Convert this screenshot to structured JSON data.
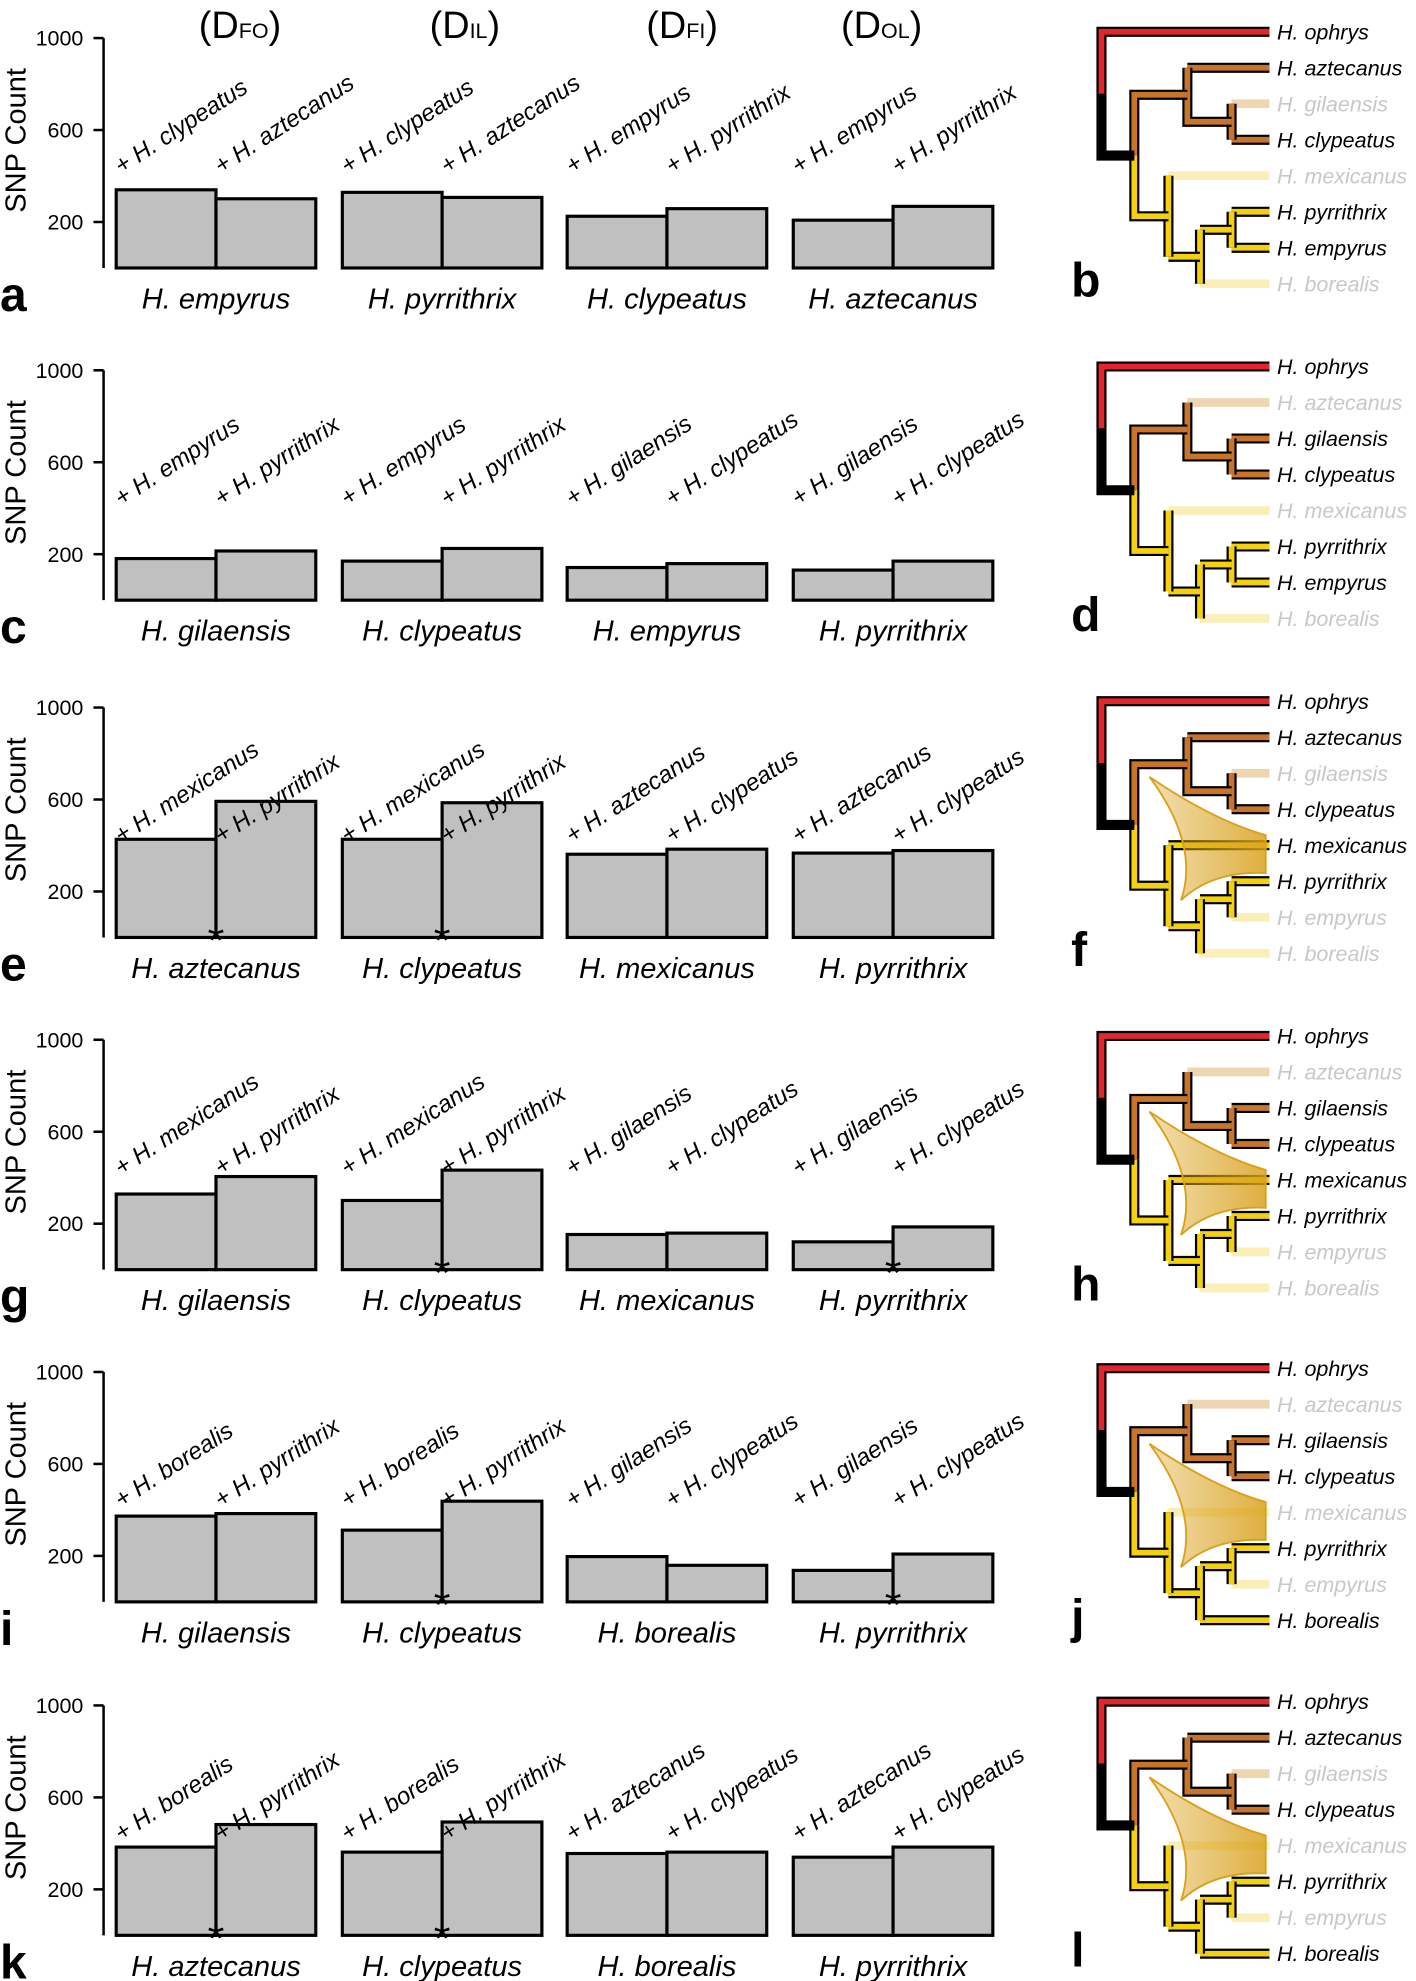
{
  "column_headers": [
    {
      "open": "(",
      "symbol": "D",
      "subscript": "FO",
      "close": ")"
    },
    {
      "open": "(",
      "symbol": "D",
      "subscript": "IL",
      "close": ")"
    },
    {
      "open": "(",
      "symbol": "D",
      "subscript": "FI",
      "close": ")"
    },
    {
      "open": "(",
      "symbol": "D",
      "subscript": "OL",
      "close": ")"
    }
  ],
  "chart_data": [
    {
      "type": "bar",
      "panel": "a",
      "ylabel": "SNP Count",
      "ylim": [
        0,
        1000
      ],
      "yticks": [
        200,
        600,
        1000
      ],
      "color": "#c0c0c0",
      "significance_marker": "*",
      "categories": [
        "H. empyrus",
        "H. pyrrithrix",
        "H. clypeatus",
        "H. aztecanus"
      ],
      "bar_labels": [
        [
          "+ H. clypeatus",
          "+ H. aztecanus"
        ],
        [
          "+ H. clypeatus",
          "+ H. aztecanus"
        ],
        [
          "+ H. empyrus",
          "+ H. pyrrithrix"
        ],
        [
          "+ H. empyrus",
          "+ H. pyrrithrix"
        ]
      ],
      "values": [
        [
          340,
          301
        ],
        [
          329,
          307
        ],
        [
          225,
          258
        ],
        [
          208,
          268
        ]
      ],
      "significant": [
        false,
        false,
        false,
        false
      ]
    },
    {
      "type": "bar",
      "panel": "c",
      "ylabel": "SNP Count",
      "ylim": [
        0,
        1000
      ],
      "yticks": [
        200,
        600,
        1000
      ],
      "color": "#c0c0c0",
      "significance_marker": "*",
      "categories": [
        "H. gilaensis",
        "H. clypeatus",
        "H. empyrus",
        "H. pyrrithrix"
      ],
      "bar_labels": [
        [
          "+ H. empyrus",
          "+ H. pyrrithrix"
        ],
        [
          "+ H. empyrus",
          "+ H. pyrrithrix"
        ],
        [
          "+ H. gilaensis",
          "+ H. clypeatus"
        ],
        [
          "+ H. gilaensis",
          "+ H. clypeatus"
        ]
      ],
      "values": [
        [
          181,
          214
        ],
        [
          170,
          225
        ],
        [
          142,
          159
        ],
        [
          131,
          170
        ]
      ],
      "significant": [
        false,
        false,
        false,
        false
      ]
    },
    {
      "type": "bar",
      "panel": "e",
      "ylabel": "SNP Count",
      "ylim": [
        0,
        1000
      ],
      "yticks": [
        200,
        600,
        1000
      ],
      "color": "#c0c0c0",
      "significance_marker": "*",
      "categories": [
        "H. aztecanus",
        "H. clypeatus",
        "H. mexicanus",
        "H. pyrrithrix"
      ],
      "bar_labels": [
        [
          "+ H. mexicanus",
          "+ H. pyrrithrix"
        ],
        [
          "+ H. mexicanus",
          "+ H. pyrrithrix"
        ],
        [
          "+ H. aztecanus",
          "+ H. clypeatus"
        ],
        [
          "+ H. aztecanus",
          "+ H. clypeatus"
        ]
      ],
      "values": [
        [
          427,
          592
        ],
        [
          427,
          586
        ],
        [
          362,
          384
        ],
        [
          367,
          378
        ]
      ],
      "significant": [
        true,
        true,
        false,
        false
      ]
    },
    {
      "type": "bar",
      "panel": "g",
      "ylabel": "SNP Count",
      "ylim": [
        0,
        1000
      ],
      "yticks": [
        200,
        600,
        1000
      ],
      "color": "#c0c0c0",
      "significance_marker": "*",
      "categories": [
        "H. gilaensis",
        "H. clypeatus",
        "H. mexicanus",
        "H. pyrrithrix"
      ],
      "bar_labels": [
        [
          "+ H. mexicanus",
          "+ H. pyrrithrix"
        ],
        [
          "+ H. mexicanus",
          "+ H. pyrrithrix"
        ],
        [
          "+ H. gilaensis",
          "+ H. clypeatus"
        ],
        [
          "+ H. gilaensis",
          "+ H. clypeatus"
        ]
      ],
      "values": [
        [
          329,
          405
        ],
        [
          301,
          433
        ],
        [
          153,
          159
        ],
        [
          121,
          186
        ]
      ],
      "significant": [
        false,
        true,
        false,
        true
      ]
    },
    {
      "type": "bar",
      "panel": "i",
      "ylabel": "SNP Count",
      "ylim": [
        0,
        1000
      ],
      "yticks": [
        200,
        600,
        1000
      ],
      "color": "#c0c0c0",
      "significance_marker": "*",
      "categories": [
        "H. gilaensis",
        "H. clypeatus",
        "H. borealis",
        "H. pyrrithrix"
      ],
      "bar_labels": [
        [
          "+ H. borealis",
          "+ H. pyrrithrix"
        ],
        [
          "+ H. borealis",
          "+ H. pyrrithrix"
        ],
        [
          "+ H. gilaensis",
          "+ H. clypeatus"
        ],
        [
          "+ H. gilaensis",
          "+ H. clypeatus"
        ]
      ],
      "values": [
        [
          373,
          384
        ],
        [
          312,
          438
        ],
        [
          197,
          159
        ],
        [
          137,
          208
        ]
      ],
      "significant": [
        false,
        true,
        false,
        true
      ]
    },
    {
      "type": "bar",
      "panel": "k",
      "ylabel": "SNP Count",
      "ylim": [
        0,
        1000
      ],
      "yticks": [
        200,
        600,
        1000
      ],
      "color": "#c0c0c0",
      "significance_marker": "*",
      "categories": [
        "H. aztecanus",
        "H. clypeatus",
        "H. borealis",
        "H. pyrrithrix"
      ],
      "bar_labels": [
        [
          "+ H. borealis",
          "+ H. pyrrithrix"
        ],
        [
          "+ H. borealis",
          "+ H. pyrrithrix"
        ],
        [
          "+ H. aztecanus",
          "+ H. clypeatus"
        ],
        [
          "+ H. aztecanus",
          "+ H. clypeatus"
        ]
      ],
      "values": [
        [
          384,
          482
        ],
        [
          362,
          493
        ],
        [
          356,
          362
        ],
        [
          340,
          384
        ]
      ],
      "significant": [
        true,
        true,
        false,
        false
      ]
    }
  ],
  "trees": [
    {
      "panel": "b",
      "gene_flow": false,
      "tips": [
        {
          "label": "H. ophrys",
          "faded": false
        },
        {
          "label": "H. aztecanus",
          "faded": false
        },
        {
          "label": "H. gilaensis",
          "faded": true
        },
        {
          "label": "H. clypeatus",
          "faded": false
        },
        {
          "label": "H. mexicanus",
          "faded": true
        },
        {
          "label": "H. pyrrithrix",
          "faded": false
        },
        {
          "label": "H. empyrus",
          "faded": false
        },
        {
          "label": "H. borealis",
          "faded": true
        }
      ]
    },
    {
      "panel": "d",
      "gene_flow": false,
      "tips": [
        {
          "label": "H. ophrys",
          "faded": false
        },
        {
          "label": "H. aztecanus",
          "faded": true
        },
        {
          "label": "H. gilaensis",
          "faded": false
        },
        {
          "label": "H. clypeatus",
          "faded": false
        },
        {
          "label": "H. mexicanus",
          "faded": true
        },
        {
          "label": "H. pyrrithrix",
          "faded": false
        },
        {
          "label": "H. empyrus",
          "faded": false
        },
        {
          "label": "H. borealis",
          "faded": true
        }
      ]
    },
    {
      "panel": "f",
      "gene_flow": true,
      "tips": [
        {
          "label": "H. ophrys",
          "faded": false
        },
        {
          "label": "H. aztecanus",
          "faded": false
        },
        {
          "label": "H. gilaensis",
          "faded": true
        },
        {
          "label": "H. clypeatus",
          "faded": false
        },
        {
          "label": "H. mexicanus",
          "faded": false
        },
        {
          "label": "H. pyrrithrix",
          "faded": false
        },
        {
          "label": "H. empyrus",
          "faded": true
        },
        {
          "label": "H. borealis",
          "faded": true
        }
      ]
    },
    {
      "panel": "h",
      "gene_flow": true,
      "tips": [
        {
          "label": "H. ophrys",
          "faded": false
        },
        {
          "label": "H. aztecanus",
          "faded": true
        },
        {
          "label": "H. gilaensis",
          "faded": false
        },
        {
          "label": "H. clypeatus",
          "faded": false
        },
        {
          "label": "H. mexicanus",
          "faded": false
        },
        {
          "label": "H. pyrrithrix",
          "faded": false
        },
        {
          "label": "H. empyrus",
          "faded": true
        },
        {
          "label": "H. borealis",
          "faded": true
        }
      ]
    },
    {
      "panel": "j",
      "gene_flow": true,
      "tips": [
        {
          "label": "H. ophrys",
          "faded": false
        },
        {
          "label": "H. aztecanus",
          "faded": true
        },
        {
          "label": "H. gilaensis",
          "faded": false
        },
        {
          "label": "H. clypeatus",
          "faded": false
        },
        {
          "label": "H. mexicanus",
          "faded": true
        },
        {
          "label": "H. pyrrithrix",
          "faded": false
        },
        {
          "label": "H. empyrus",
          "faded": true
        },
        {
          "label": "H. borealis",
          "faded": false
        }
      ]
    },
    {
      "panel": "l",
      "gene_flow": true,
      "tips": [
        {
          "label": "H. ophrys",
          "faded": false
        },
        {
          "label": "H. aztecanus",
          "faded": false
        },
        {
          "label": "H. gilaensis",
          "faded": true
        },
        {
          "label": "H. clypeatus",
          "faded": false
        },
        {
          "label": "H. mexicanus",
          "faded": true
        },
        {
          "label": "H. pyrrithrix",
          "faded": false
        },
        {
          "label": "H. empyrus",
          "faded": true
        },
        {
          "label": "H. borealis",
          "faded": false
        }
      ]
    }
  ]
}
